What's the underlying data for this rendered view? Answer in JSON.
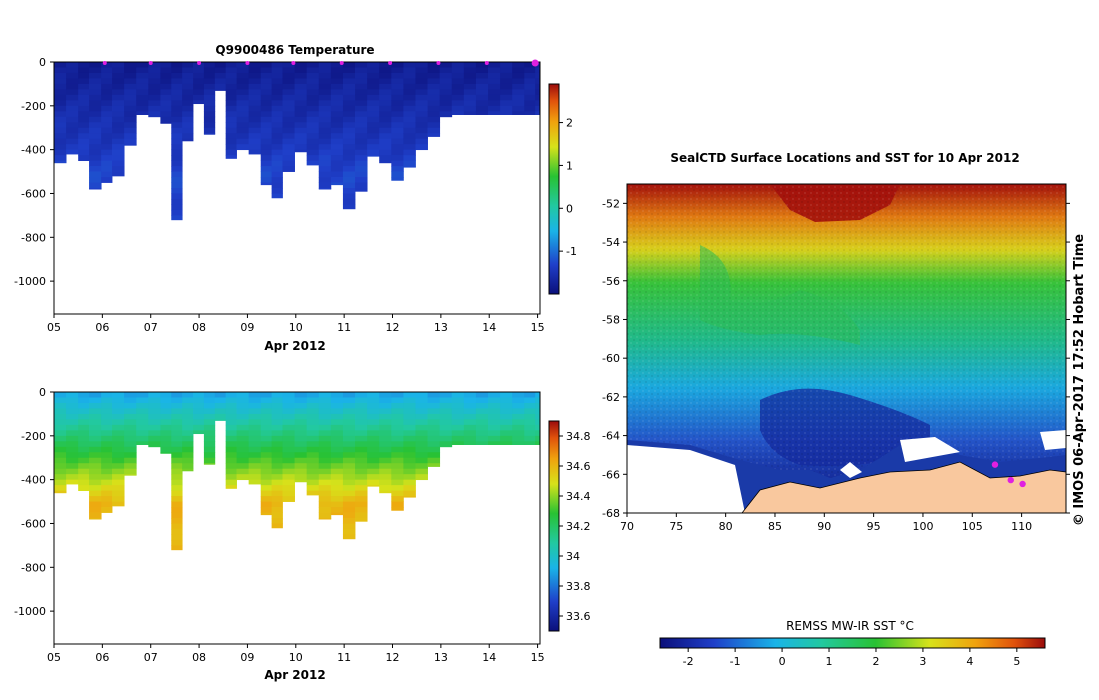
{
  "chart_data": [
    {
      "id": "temperature",
      "type": "heatmap",
      "title": "Q9900486  Temperature",
      "xlabel": "Apr 2012",
      "xticks": [
        "05",
        "06",
        "07",
        "08",
        "09",
        "10",
        "11",
        "12",
        "13",
        "14",
        "15"
      ],
      "xlim": [
        5,
        15.05
      ],
      "yticks": [
        0,
        -200,
        -400,
        -600,
        -800,
        -1000
      ],
      "ylim": [
        -1150,
        0
      ],
      "colorbar": {
        "min": -2.0,
        "max": 2.9,
        "ticks": [
          -1,
          0,
          1,
          2
        ]
      },
      "profile_day": [
        5.1,
        5.4,
        5.6,
        5.85,
        6.1,
        6.3,
        6.6,
        6.8,
        7.1,
        7.3,
        7.55,
        7.75,
        8.0,
        8.2,
        8.45,
        8.65,
        8.9,
        9.15,
        9.4,
        9.6,
        9.85,
        10.1,
        10.35,
        10.6,
        10.85,
        11.1,
        11.35,
        11.6,
        11.85,
        12.1,
        12.35,
        12.6,
        12.85,
        13.1,
        13.35,
        13.6,
        13.85,
        14.1,
        14.35,
        14.6,
        14.85,
        15.05
      ],
      "profile_max_depth": [
        460,
        420,
        450,
        580,
        550,
        520,
        380,
        240,
        250,
        280,
        720,
        360,
        190,
        330,
        130,
        440,
        400,
        420,
        560,
        620,
        500,
        410,
        470,
        580,
        560,
        670,
        590,
        430,
        460,
        540,
        480,
        400,
        340,
        250,
        240,
        240,
        240,
        240,
        240,
        240,
        240,
        240
      ],
      "surface_value": -1.8,
      "deep_value": -1.3,
      "ship_markers_day": [
        6.05,
        7.0,
        8.0,
        9.0,
        9.95,
        10.95,
        11.95,
        12.95,
        13.95,
        14.95
      ]
    },
    {
      "id": "salinity",
      "type": "heatmap",
      "title": "",
      "xlabel": "Apr 2012",
      "xticks": [
        "05",
        "06",
        "07",
        "08",
        "09",
        "10",
        "11",
        "12",
        "13",
        "14",
        "15"
      ],
      "xlim": [
        5,
        15.05
      ],
      "yticks": [
        0,
        -200,
        -400,
        -600,
        -800,
        -1000
      ],
      "ylim": [
        -1150,
        0
      ],
      "colorbar": {
        "min": 33.5,
        "max": 34.9,
        "ticks": [
          33.6,
          33.8,
          34,
          34.2,
          34.4,
          34.6,
          34.8
        ]
      },
      "surface_value": 33.9,
      "deep_value": 34.6
    },
    {
      "id": "sst-map",
      "type": "heatmap",
      "title": "SealCTD Surface Locations and SST for 10 Apr 2012",
      "xticks": [
        70,
        75,
        80,
        85,
        90,
        95,
        100,
        105,
        110
      ],
      "yticks": [
        -52,
        -54,
        -56,
        -58,
        -60,
        -62,
        -64,
        -66,
        -68
      ],
      "xlim": [
        70,
        114.5
      ],
      "ylim": [
        -68,
        -51
      ],
      "colorbar": {
        "label": "REMSS MW-IR SST °C",
        "min": -2.6,
        "max": 5.6,
        "ticks": [
          -2,
          -1,
          0,
          1,
          2,
          3,
          4,
          5
        ]
      },
      "seal_locations": [
        {
          "lon": 107.3,
          "lat": -65.5
        },
        {
          "lon": 108.9,
          "lat": -66.3
        },
        {
          "lon": 110.1,
          "lat": -66.5
        }
      ]
    }
  ],
  "side_label": "© IMOS 06-Apr-2017 17:52 Hobart Time"
}
